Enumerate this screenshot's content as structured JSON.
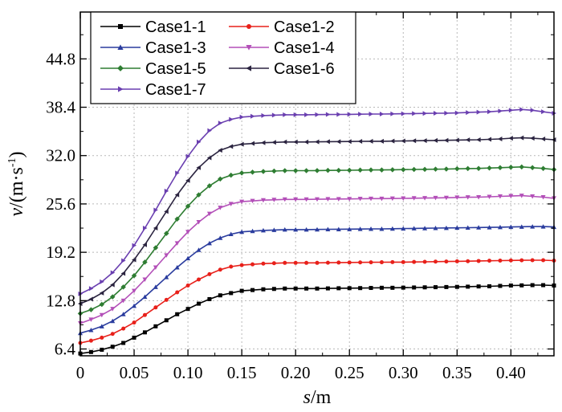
{
  "chart_data": {
    "type": "line",
    "xlabel_italic": "s",
    "xlabel_unit": "/m",
    "ylabel_italic": "v",
    "ylabel_unit": "/(m·s",
    "ylabel_exp": "-1",
    "ylabel_close": ")",
    "xlim": [
      0,
      0.44
    ],
    "ylim": [
      5.5,
      51.0
    ],
    "xticks": [
      0,
      0.05,
      0.1,
      0.15,
      0.2,
      0.25,
      0.3,
      0.35,
      0.4
    ],
    "xtick_labels": [
      "0",
      "0.05",
      "0.10",
      "0.15",
      "0.20",
      "0.25",
      "0.30",
      "0.35",
      "0.40"
    ],
    "yticks": [
      6.4,
      12.8,
      19.2,
      25.6,
      32.0,
      38.4,
      44.8
    ],
    "ytick_labels": [
      "6.4",
      "12.8",
      "19.2",
      "25.6",
      "32.0",
      "38.4",
      "44.8"
    ],
    "grid": true,
    "legend_position": "top-left",
    "x": [
      0,
      0.01,
      0.02,
      0.03,
      0.04,
      0.05,
      0.06,
      0.07,
      0.08,
      0.09,
      0.1,
      0.11,
      0.12,
      0.13,
      0.14,
      0.15,
      0.16,
      0.17,
      0.18,
      0.19,
      0.2,
      0.21,
      0.22,
      0.23,
      0.24,
      0.25,
      0.26,
      0.27,
      0.28,
      0.29,
      0.3,
      0.31,
      0.32,
      0.33,
      0.34,
      0.35,
      0.36,
      0.37,
      0.38,
      0.39,
      0.4,
      0.41,
      0.42,
      0.43,
      0.44
    ],
    "series": [
      {
        "name": "Case1-1",
        "color": "#000000",
        "marker": "square",
        "values": [
          5.8,
          6.0,
          6.3,
          6.7,
          7.2,
          7.9,
          8.6,
          9.4,
          10.2,
          11.0,
          11.7,
          12.4,
          13.0,
          13.5,
          13.8,
          14.1,
          14.2,
          14.3,
          14.35,
          14.4,
          14.4,
          14.4,
          14.4,
          14.42,
          14.44,
          14.45,
          14.46,
          14.48,
          14.5,
          14.5,
          14.52,
          14.54,
          14.56,
          14.58,
          14.6,
          14.62,
          14.65,
          14.68,
          14.7,
          14.75,
          14.8,
          14.82,
          14.85,
          14.85,
          14.8
        ]
      },
      {
        "name": "Case1-2",
        "color": "#e8201a",
        "marker": "circle",
        "values": [
          7.2,
          7.5,
          7.9,
          8.4,
          9.1,
          9.9,
          10.9,
          11.9,
          12.9,
          13.9,
          14.8,
          15.6,
          16.3,
          16.9,
          17.3,
          17.5,
          17.6,
          17.7,
          17.75,
          17.8,
          17.8,
          17.8,
          17.8,
          17.82,
          17.84,
          17.85,
          17.86,
          17.87,
          17.88,
          17.9,
          17.9,
          17.92,
          17.94,
          17.96,
          17.98,
          18.0,
          18.02,
          18.05,
          18.08,
          18.1,
          18.12,
          18.14,
          18.15,
          18.15,
          18.1
        ]
      },
      {
        "name": "Case1-3",
        "color": "#2a3c9e",
        "marker": "triangle-up",
        "values": [
          8.5,
          8.9,
          9.4,
          10.1,
          11.0,
          12.1,
          13.3,
          14.6,
          15.9,
          17.2,
          18.4,
          19.5,
          20.4,
          21.1,
          21.6,
          21.9,
          22.0,
          22.1,
          22.15,
          22.2,
          22.2,
          22.2,
          22.22,
          22.24,
          22.25,
          22.26,
          22.28,
          22.3,
          22.3,
          22.32,
          22.34,
          22.36,
          22.38,
          22.4,
          22.42,
          22.44,
          22.46,
          22.48,
          22.5,
          22.52,
          22.55,
          22.58,
          22.6,
          22.6,
          22.55
        ]
      },
      {
        "name": "Case1-4",
        "color": "#b34fb8",
        "marker": "triangle-down",
        "values": [
          9.8,
          10.3,
          10.9,
          11.7,
          12.8,
          14.1,
          15.6,
          17.2,
          18.8,
          20.4,
          21.9,
          23.2,
          24.3,
          25.1,
          25.6,
          25.9,
          26.0,
          26.1,
          26.15,
          26.2,
          26.2,
          26.2,
          26.22,
          26.24,
          26.25,
          26.26,
          26.28,
          26.3,
          26.3,
          26.32,
          26.34,
          26.36,
          26.38,
          26.4,
          26.42,
          26.45,
          26.48,
          26.5,
          26.55,
          26.6,
          26.65,
          26.7,
          26.6,
          26.5,
          26.35
        ]
      },
      {
        "name": "Case1-5",
        "color": "#2e7d32",
        "marker": "diamond",
        "values": [
          11.1,
          11.6,
          12.3,
          13.3,
          14.6,
          16.1,
          17.9,
          19.8,
          21.7,
          23.6,
          25.3,
          26.8,
          28.0,
          28.9,
          29.4,
          29.7,
          29.8,
          29.9,
          29.95,
          30.0,
          30.0,
          30.0,
          30.02,
          30.04,
          30.05,
          30.06,
          30.08,
          30.1,
          30.1,
          30.12,
          30.14,
          30.16,
          30.18,
          30.2,
          30.22,
          30.25,
          30.28,
          30.3,
          30.35,
          30.4,
          30.45,
          30.5,
          30.4,
          30.3,
          30.15
        ]
      },
      {
        "name": "Case1-6",
        "color": "#2b2440",
        "marker": "triangle-left",
        "values": [
          12.4,
          13.0,
          13.8,
          14.9,
          16.4,
          18.2,
          20.2,
          22.4,
          24.6,
          26.8,
          28.7,
          30.4,
          31.7,
          32.7,
          33.2,
          33.5,
          33.6,
          33.7,
          33.75,
          33.8,
          33.8,
          33.8,
          33.82,
          33.84,
          33.85,
          33.86,
          33.88,
          33.9,
          33.9,
          33.92,
          33.94,
          33.96,
          33.98,
          34.0,
          34.02,
          34.05,
          34.08,
          34.1,
          34.15,
          34.2,
          34.3,
          34.35,
          34.3,
          34.2,
          34.1
        ]
      },
      {
        "name": "Case1-7",
        "color": "#6a3fb0",
        "marker": "triangle-right",
        "values": [
          13.7,
          14.4,
          15.3,
          16.5,
          18.1,
          20.1,
          22.4,
          24.8,
          27.3,
          29.7,
          31.9,
          33.8,
          35.3,
          36.3,
          36.8,
          37.1,
          37.2,
          37.3,
          37.35,
          37.4,
          37.4,
          37.4,
          37.42,
          37.44,
          37.45,
          37.46,
          37.48,
          37.5,
          37.5,
          37.52,
          37.54,
          37.56,
          37.58,
          37.6,
          37.62,
          37.65,
          37.7,
          37.75,
          37.8,
          37.9,
          38.0,
          38.1,
          38.0,
          37.8,
          37.6
        ]
      }
    ]
  }
}
